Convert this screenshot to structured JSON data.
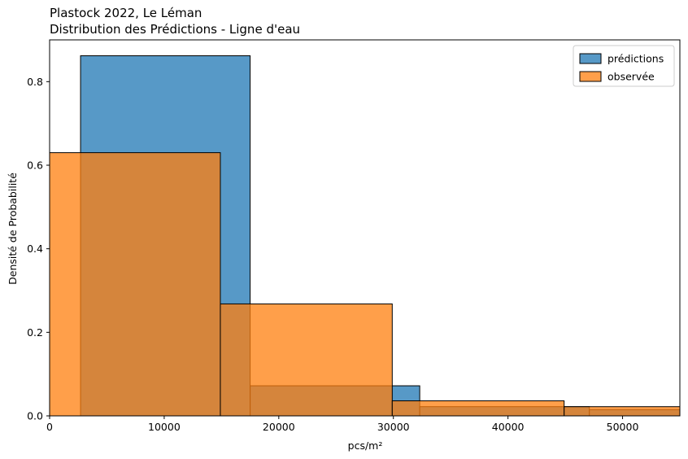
{
  "chart_data": {
    "type": "bar",
    "title": "Plastock 2022, Le Léman",
    "subtitle": "Distribution des Prédictions - Ligne d'eau",
    "xlabel": "pcs/m²",
    "ylabel": "Densité de Probabilité",
    "xlim": [
      0,
      55000
    ],
    "ylim": [
      0,
      0.9
    ],
    "x_ticks": [
      0,
      10000,
      20000,
      30000,
      40000,
      50000
    ],
    "y_ticks": [
      0.0,
      0.2,
      0.4,
      0.6,
      0.8
    ],
    "x_tick_labels": [
      "0",
      "10000",
      "20000",
      "30000",
      "40000",
      "50000"
    ],
    "y_tick_labels": [
      "0.0",
      "0.2",
      "0.4",
      "0.6",
      "0.8"
    ],
    "grid": false,
    "legend_position": "top-right",
    "series": [
      {
        "name": "prédictions",
        "color": "#1f77b4",
        "bins": [
          {
            "x0": 2700,
            "x1": 17500,
            "density": 0.862
          },
          {
            "x0": 17500,
            "x1": 32300,
            "density": 0.072
          },
          {
            "x0": 32300,
            "x1": 47100,
            "density": 0.022
          },
          {
            "x0": 47100,
            "x1": 61900,
            "density": 0.015
          }
        ]
      },
      {
        "name": "observée",
        "color": "#ff7f0e",
        "bins": [
          {
            "x0": -100,
            "x1": 14900,
            "density": 0.63
          },
          {
            "x0": 14900,
            "x1": 29900,
            "density": 0.268
          },
          {
            "x0": 29900,
            "x1": 44900,
            "density": 0.036
          },
          {
            "x0": 44900,
            "x1": 59900,
            "density": 0.022
          }
        ]
      }
    ]
  }
}
